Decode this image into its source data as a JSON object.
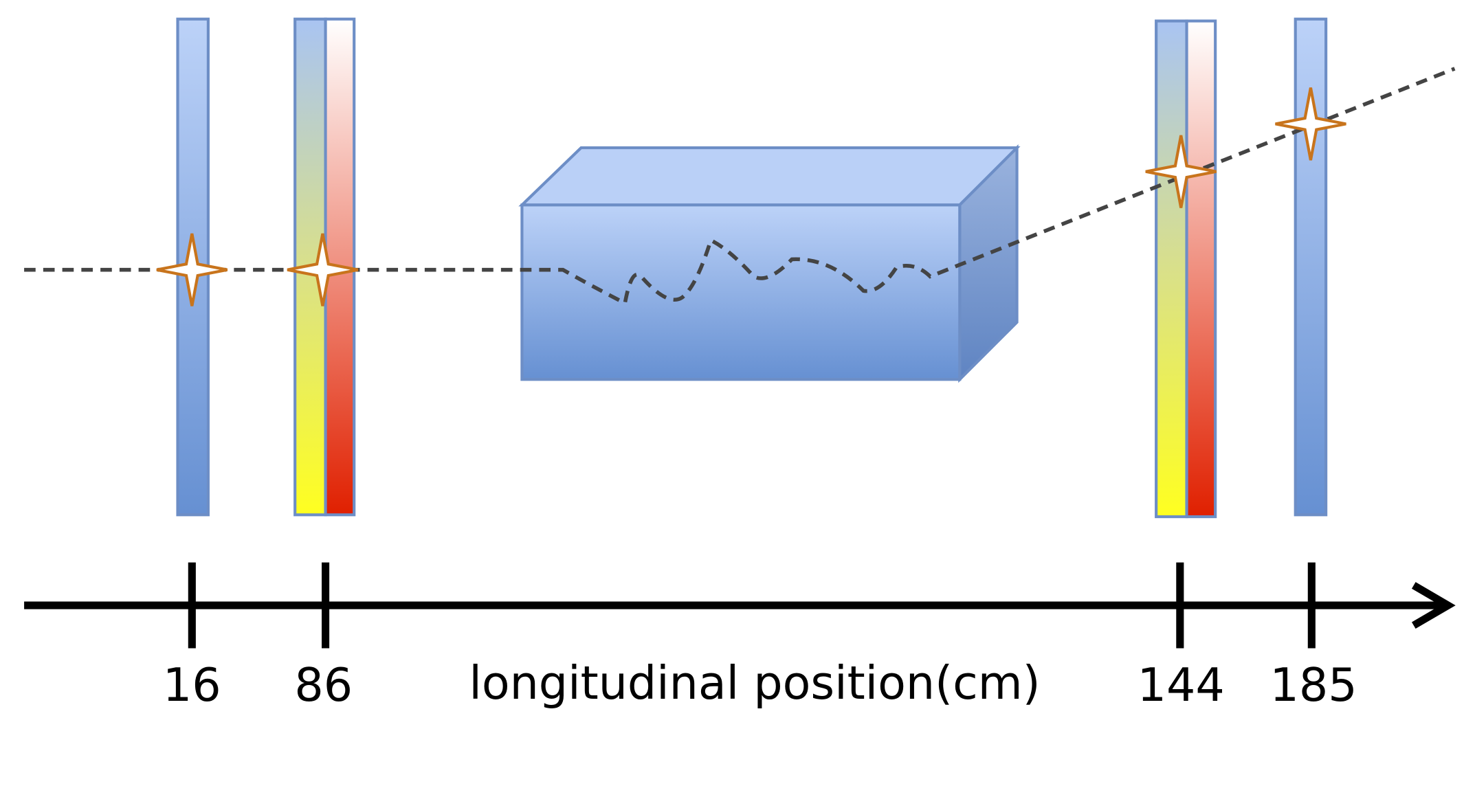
{
  "axis": {
    "label": "longitudinal position(cm)",
    "ticks": [
      "16",
      "86",
      "144",
      "185"
    ]
  }
}
